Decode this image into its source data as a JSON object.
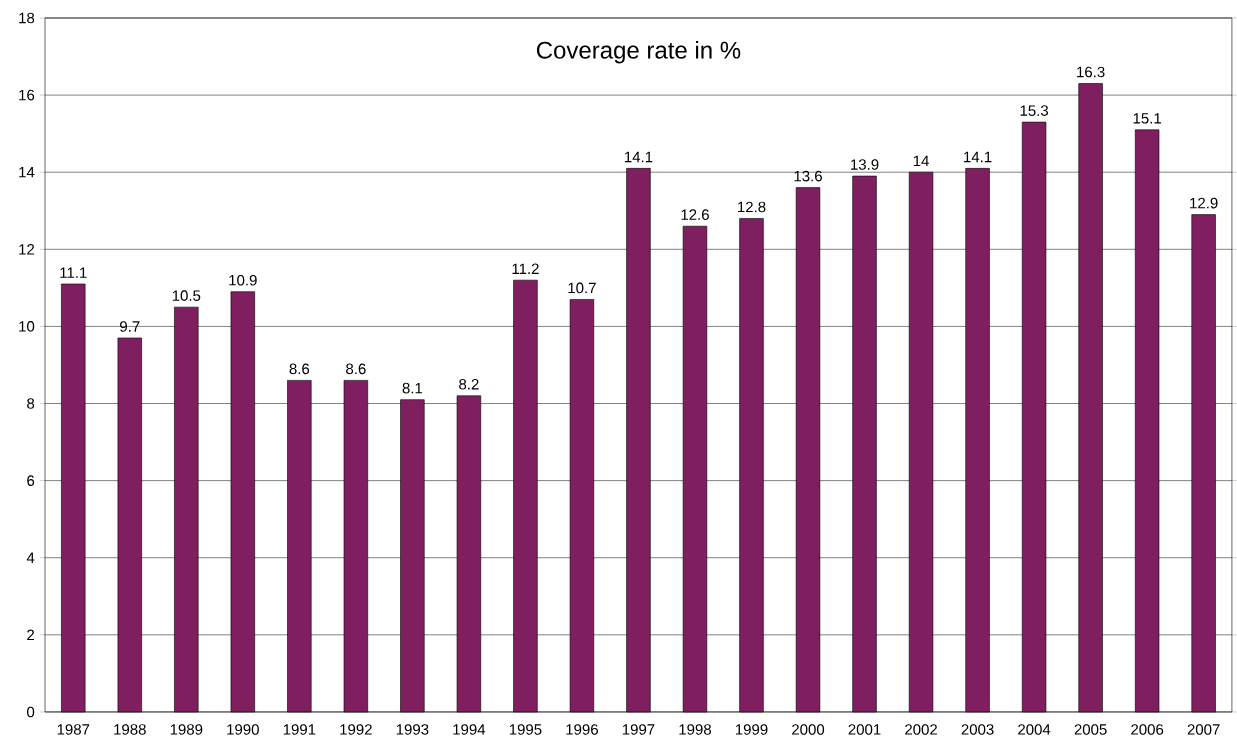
{
  "chart_data": {
    "type": "bar",
    "title": "Coverage rate in %",
    "categories": [
      "1987",
      "1988",
      "1989",
      "1990",
      "1991",
      "1992",
      "1993",
      "1994",
      "1995",
      "1996",
      "1997",
      "1998",
      "1999",
      "2000",
      "2001",
      "2002",
      "2003",
      "2004",
      "2005",
      "2006",
      "2007"
    ],
    "values": [
      11.1,
      9.7,
      10.5,
      10.9,
      8.6,
      8.6,
      8.1,
      8.2,
      11.2,
      10.7,
      14.1,
      12.6,
      12.8,
      13.6,
      13.9,
      14,
      14.1,
      15.3,
      16.3,
      15.1,
      12.9
    ],
    "color": "#7f1f5f",
    "ylim": [
      0,
      18
    ],
    "yticks": [
      0,
      2,
      4,
      6,
      8,
      10,
      12,
      14,
      16,
      18
    ],
    "grid": "y",
    "data_labels": true
  }
}
